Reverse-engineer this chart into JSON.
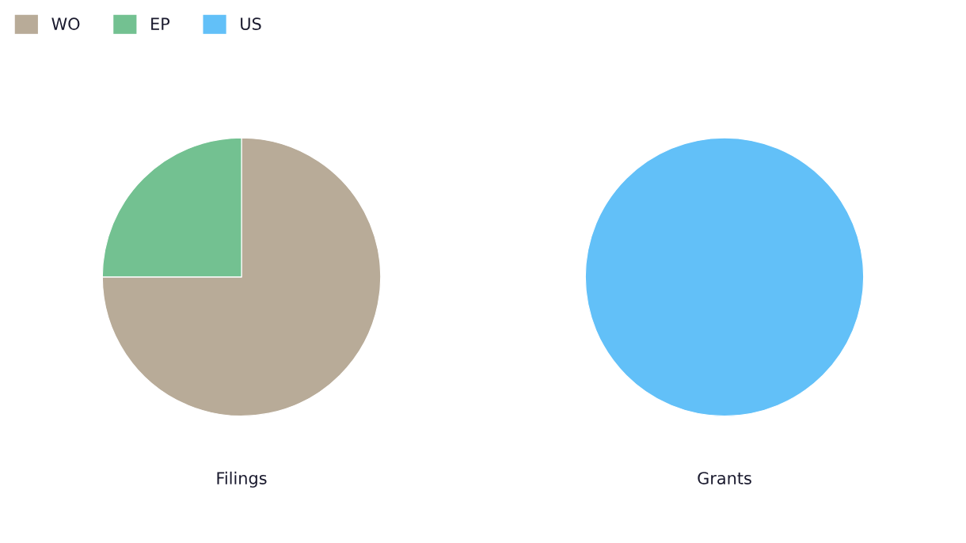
{
  "chart_data": [
    {
      "type": "pie",
      "title": "Filings",
      "categories": [
        "WO",
        "EP"
      ],
      "values": [
        75,
        25
      ],
      "colors": [
        "#b8ab98",
        "#73c191"
      ],
      "legend": "top left"
    },
    {
      "type": "pie",
      "title": "Grants",
      "categories": [
        "US"
      ],
      "values": [
        100
      ],
      "colors": [
        "#62c0f8"
      ],
      "legend": "top left"
    }
  ]
}
